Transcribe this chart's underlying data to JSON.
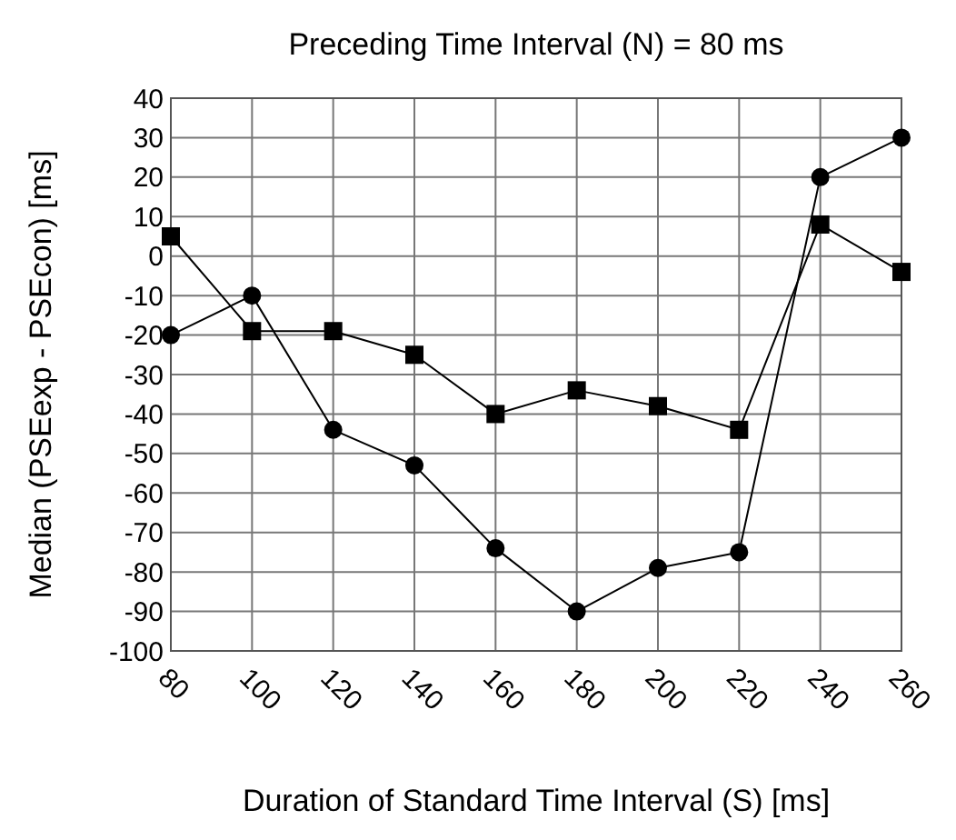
{
  "chart_data": {
    "type": "line",
    "title": "Preceding Time Interval (N) = 80 ms",
    "xlabel": "Duration of Standard Time Interval (S)  [ms]",
    "ylabel": "Median (PSEexp - PSEcon) [ms]",
    "x": [
      80,
      100,
      120,
      140,
      160,
      180,
      200,
      220,
      240,
      260
    ],
    "series": [
      {
        "color": "#000000",
        "marker": "circle",
        "values": [
          -20,
          -10,
          -44,
          -53,
          -74,
          -90,
          -79,
          -75,
          20,
          30
        ]
      },
      {
        "color": "#000000",
        "marker": "square",
        "values": [
          5,
          -19,
          -19,
          -25,
          -40,
          -34,
          -38,
          -44,
          8,
          -4
        ]
      }
    ],
    "xlim": [
      80,
      260
    ],
    "xticks": [
      80,
      100,
      120,
      140,
      160,
      180,
      200,
      220,
      240,
      260
    ],
    "ylim": [
      -100,
      40
    ],
    "yticks": [
      -100,
      -90,
      -80,
      -70,
      -60,
      -50,
      -40,
      -30,
      -20,
      -10,
      0,
      10,
      20,
      30,
      40
    ],
    "grid": true
  }
}
